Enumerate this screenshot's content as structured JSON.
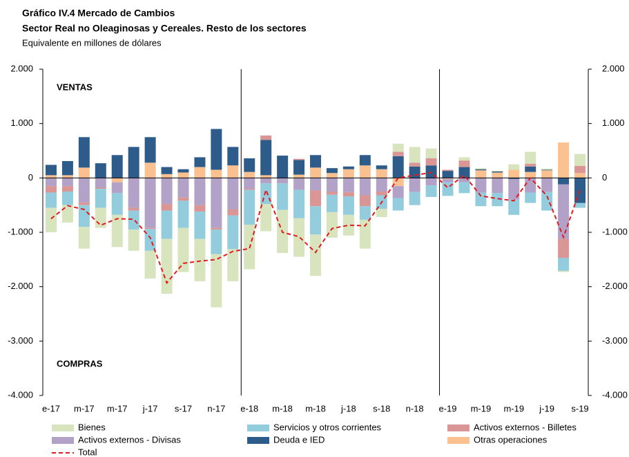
{
  "chart_data": {
    "type": "bar",
    "title": "Gráfico IV.4 Mercado de Cambios",
    "subtitle": "Sector Real no Oleaginosas y Cereales. Resto de los sectores",
    "unit_label": "Equivalente en millones de dólares",
    "annotations": [
      "VENTAS",
      "COMPRAS"
    ],
    "stacked": true,
    "categories": [
      "e-17",
      null,
      "m-17",
      null,
      "m-17",
      null,
      "j-17",
      null,
      "s-17",
      null,
      "n-17",
      null,
      "e-18",
      null,
      "m-18",
      null,
      "m-18",
      null,
      "j-18",
      null,
      "s-18",
      null,
      "n-18",
      null,
      "e-19",
      null,
      "m-19",
      null,
      "m-19",
      null,
      "j-19",
      null,
      "s-19"
    ],
    "ylim": [
      -4000,
      2000
    ],
    "yticks": [
      {
        "value": 2000,
        "label": "2.000"
      },
      {
        "value": 1000,
        "label": "1.000"
      },
      0,
      {
        "value": -1000,
        "label": "-1.000"
      },
      {
        "value": -2000,
        "label": "-2.000"
      },
      {
        "value": -3000,
        "label": "-3.000"
      },
      {
        "value": -4000,
        "label": "-4.000"
      }
    ],
    "y2lim": [
      -4000,
      2000
    ],
    "y2ticks": [
      {
        "value": 2000,
        "label": "2.000"
      },
      {
        "value": 1000,
        "label": "1.000"
      },
      0,
      {
        "value": -1000,
        "label": "-1.000"
      },
      {
        "value": -2000,
        "label": "-2.000"
      },
      {
        "value": -3000,
        "label": "-3.000"
      },
      {
        "value": -4000,
        "label": "-4.000"
      }
    ],
    "series": [
      {
        "name": "Bienes",
        "color": "#d7e4bd",
        "values": [
          -450,
          -320,
          -400,
          -370,
          -590,
          -390,
          -510,
          -1010,
          -810,
          -780,
          -980,
          -590,
          -820,
          -500,
          -790,
          -710,
          -760,
          -470,
          -380,
          -530,
          -150,
          150,
          290,
          180,
          0,
          60,
          20,
          10,
          100,
          220,
          20,
          -20,
          220
        ]
      },
      {
        "name": "Servicios y otros corrientes",
        "color": "#93cddd",
        "values": [
          -280,
          -250,
          -400,
          -350,
          -400,
          -350,
          -400,
          -520,
          -500,
          -500,
          -450,
          -620,
          -640,
          -380,
          -490,
          -520,
          -520,
          -320,
          -340,
          -250,
          -250,
          -230,
          -240,
          -210,
          -250,
          -200,
          -250,
          -240,
          -280,
          -190,
          -340,
          -240,
          -90
        ]
      },
      {
        "name": "Activos externos - Billetes",
        "color": "#d99694",
        "values": [
          -120,
          -100,
          -50,
          -20,
          0,
          -50,
          -20,
          -120,
          -60,
          -120,
          -30,
          -110,
          -20,
          80,
          0,
          20,
          -290,
          -60,
          -80,
          -200,
          -70,
          80,
          70,
          130,
          20,
          120,
          0,
          0,
          0,
          50,
          0,
          -350,
          130
        ]
      },
      {
        "name": "Activos externos - Divisas",
        "color": "#b3a2c7",
        "values": [
          -150,
          -150,
          -450,
          -180,
          -200,
          -550,
          -920,
          -480,
          -360,
          -500,
          -920,
          -580,
          -200,
          -100,
          -100,
          -220,
          -230,
          -250,
          -260,
          -320,
          -250,
          -220,
          -260,
          -140,
          -60,
          -80,
          -270,
          -280,
          -380,
          -270,
          -260,
          -1000,
          0
        ]
      },
      {
        "name": "Deuda e IED",
        "color": "#2e5c8a",
        "values": [
          190,
          260,
          560,
          270,
          420,
          570,
          470,
          130,
          60,
          180,
          750,
          340,
          250,
          650,
          410,
          270,
          230,
          90,
          50,
          190,
          70,
          400,
          210,
          230,
          130,
          200,
          20,
          20,
          -20,
          100,
          10,
          -120,
          -460
        ]
      },
      {
        "name": "Otras operaciones",
        "color": "#fac090",
        "values": [
          50,
          50,
          190,
          0,
          -80,
          0,
          280,
          70,
          100,
          200,
          150,
          230,
          110,
          50,
          0,
          60,
          190,
          90,
          160,
          230,
          160,
          -150,
          0,
          0,
          -20,
          0,
          140,
          100,
          150,
          110,
          140,
          650,
          90
        ]
      }
    ],
    "total": {
      "name": "Total",
      "color": "#e31a1c",
      "dashed": true,
      "values": [
        -750,
        -510,
        -580,
        -870,
        -750,
        -760,
        -1100,
        -1930,
        -1570,
        -1530,
        -1500,
        -1350,
        -1300,
        -220,
        -1000,
        -1080,
        -1370,
        -930,
        -870,
        -880,
        -450,
        0,
        50,
        100,
        -180,
        50,
        -330,
        -380,
        -420,
        0,
        -330,
        -1090,
        -220
      ]
    }
  }
}
